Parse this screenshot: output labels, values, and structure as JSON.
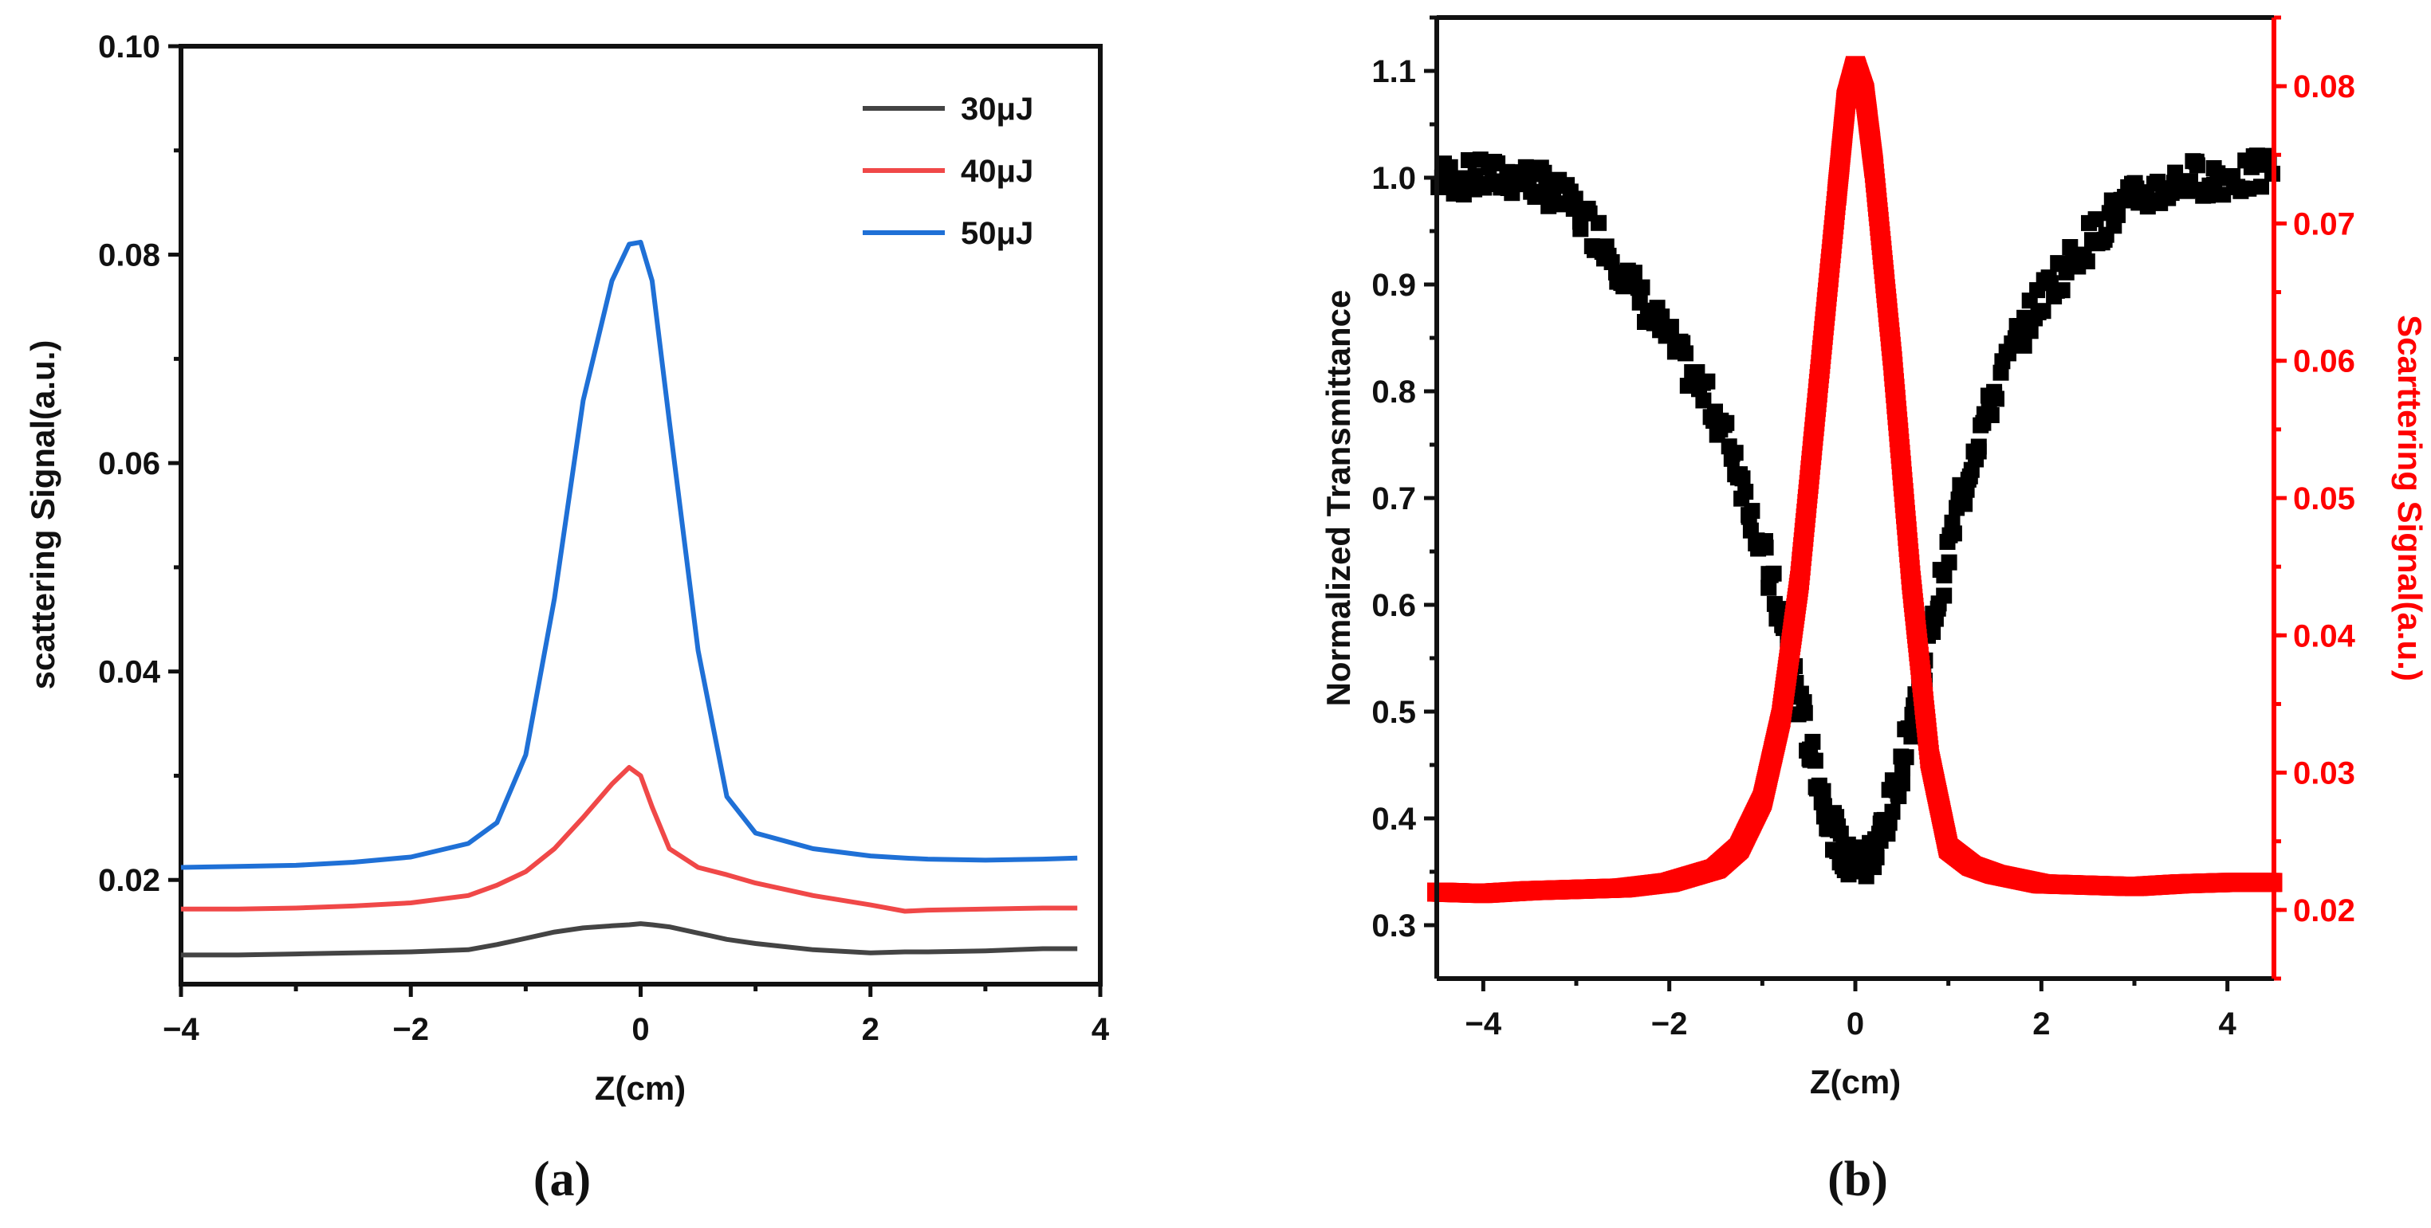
{
  "chart_data": [
    {
      "panel": "a",
      "type": "line",
      "caption": "(a)",
      "xlabel": "Z(cm)",
      "ylabel": "scattering Signal(a.u.)",
      "xlim": [
        -4,
        4
      ],
      "ylim": [
        0.01,
        0.1
      ],
      "xticks": [
        -4,
        -2,
        0,
        2,
        4
      ],
      "xtick_labels": [
        "−4",
        "−2",
        "0",
        "2",
        "4"
      ],
      "yticks": [
        0.02,
        0.04,
        0.06,
        0.08,
        0.1
      ],
      "ytick_labels": [
        "0.02",
        "0.04",
        "0.06",
        "0.08",
        "0.10"
      ],
      "legend_position": "top-right",
      "x": [
        -4,
        -3.5,
        -3,
        -2.5,
        -2,
        -1.5,
        -1.25,
        -1,
        -0.75,
        -0.5,
        -0.25,
        -0.1,
        0,
        0.1,
        0.25,
        0.5,
        0.75,
        1,
        1.5,
        2,
        2.3,
        2.5,
        3,
        3.5,
        3.8
      ],
      "series": [
        {
          "name": "30μJ",
          "color": "#444444",
          "values": [
            0.0128,
            0.0128,
            0.0129,
            0.013,
            0.0131,
            0.0133,
            0.0138,
            0.0144,
            0.015,
            0.0154,
            0.0156,
            0.0157,
            0.0158,
            0.0157,
            0.0155,
            0.0149,
            0.0143,
            0.0139,
            0.0133,
            0.013,
            0.0131,
            0.0131,
            0.0132,
            0.0134,
            0.0134
          ]
        },
        {
          "name": "40μJ",
          "color": "#f04848",
          "values": [
            0.0172,
            0.0172,
            0.0173,
            0.0175,
            0.0178,
            0.0185,
            0.0195,
            0.0208,
            0.023,
            0.026,
            0.0292,
            0.0308,
            0.03,
            0.027,
            0.023,
            0.0212,
            0.0205,
            0.0197,
            0.0185,
            0.0176,
            0.017,
            0.0171,
            0.0172,
            0.0173,
            0.0173
          ]
        },
        {
          "name": "50μJ",
          "color": "#1f70d6",
          "values": [
            0.0212,
            0.0213,
            0.0214,
            0.0217,
            0.0222,
            0.0235,
            0.0255,
            0.032,
            0.047,
            0.066,
            0.0775,
            0.081,
            0.0812,
            0.0775,
            0.064,
            0.042,
            0.028,
            0.0245,
            0.023,
            0.0223,
            0.0221,
            0.022,
            0.0219,
            0.022,
            0.0221
          ]
        }
      ]
    },
    {
      "panel": "b",
      "type": "scatter",
      "caption": "(b)",
      "xlabel": "Z(cm)",
      "ylabel_left": "Normalized Transmittance",
      "ylabel_right": "Scarttering Signal(a.u.)",
      "xlim": [
        -4.5,
        4.5
      ],
      "ylim_left": [
        0.25,
        1.15
      ],
      "ylim_right": [
        0.015,
        0.085
      ],
      "xticks": [
        -4,
        -2,
        0,
        2,
        4
      ],
      "xtick_labels": [
        "−4",
        "−2",
        "0",
        "2",
        "4"
      ],
      "yticks_left": [
        0.3,
        0.4,
        0.5,
        0.6,
        0.7,
        0.8,
        0.9,
        1.0,
        1.1
      ],
      "ytick_labels_left": [
        "0.3",
        "0.4",
        "0.5",
        "0.6",
        "0.7",
        "0.8",
        "0.9",
        "1.0",
        "1.1"
      ],
      "yticks_right": [
        0.02,
        0.03,
        0.04,
        0.05,
        0.06,
        0.07,
        0.08
      ],
      "ytick_labels_right": [
        "0.02",
        "0.03",
        "0.04",
        "0.05",
        "0.06",
        "0.07",
        "0.08"
      ],
      "right_axis_color": "#ff0000",
      "transmittance": {
        "name": "Normalized Transmittance",
        "color": "#000000",
        "marker": "square",
        "x": [
          -4.5,
          -4.2,
          -3.9,
          -3.6,
          -3.3,
          -3.0,
          -2.7,
          -2.4,
          -2.1,
          -1.8,
          -1.5,
          -1.3,
          -1.1,
          -0.9,
          -0.7,
          -0.5,
          -0.35,
          -0.2,
          -0.1,
          0.0,
          0.1,
          0.2,
          0.35,
          0.5,
          0.7,
          0.9,
          1.1,
          1.3,
          1.5,
          1.8,
          2.1,
          2.4,
          2.7,
          3.0,
          3.3,
          3.6,
          3.9,
          4.2,
          4.5
        ],
        "y": [
          1.0,
          1.0,
          1.0,
          1.0,
          0.99,
          0.97,
          0.94,
          0.9,
          0.86,
          0.82,
          0.78,
          0.74,
          0.68,
          0.62,
          0.55,
          0.47,
          0.42,
          0.38,
          0.36,
          0.36,
          0.36,
          0.37,
          0.4,
          0.45,
          0.53,
          0.61,
          0.69,
          0.75,
          0.8,
          0.86,
          0.9,
          0.93,
          0.96,
          0.98,
          0.99,
          1.0,
          1.0,
          1.0,
          1.01
        ]
      },
      "scattering": {
        "name": "Scarttering Signal",
        "color": "#ff0000",
        "marker": "square",
        "x": [
          -4.5,
          -4.0,
          -3.5,
          -3.0,
          -2.5,
          -2.0,
          -1.5,
          -1.25,
          -1.0,
          -0.8,
          -0.6,
          -0.4,
          -0.2,
          -0.1,
          0.0,
          0.1,
          0.2,
          0.4,
          0.6,
          0.8,
          1.0,
          1.25,
          1.5,
          2.0,
          2.5,
          3.0,
          3.5,
          4.0,
          4.5
        ],
        "y": [
          0.0213,
          0.0212,
          0.0214,
          0.0215,
          0.0216,
          0.022,
          0.023,
          0.0245,
          0.028,
          0.034,
          0.044,
          0.058,
          0.072,
          0.079,
          0.0815,
          0.0795,
          0.074,
          0.06,
          0.044,
          0.031,
          0.0245,
          0.0232,
          0.0226,
          0.0219,
          0.0218,
          0.0217,
          0.0219,
          0.022,
          0.022
        ]
      }
    }
  ]
}
